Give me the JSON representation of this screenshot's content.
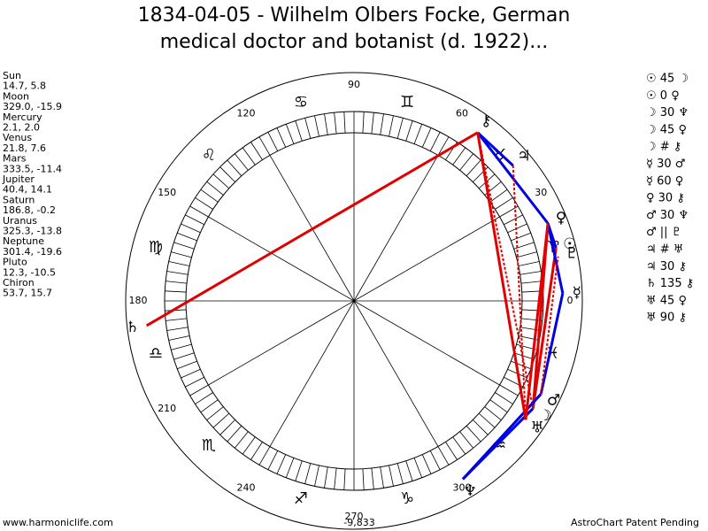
{
  "header": {
    "title_lines": [
      "1834-04-05 - Wilhelm Olbers Focke, German",
      "medical doctor and botanist (d. 1922)..."
    ]
  },
  "planets": [
    {
      "name": "Sun",
      "position": "14.7, 5.8",
      "glyph": "☉"
    },
    {
      "name": "Moon",
      "position": "329.0, -15.9",
      "glyph": "☽"
    },
    {
      "name": "Mercury",
      "position": "2.1, 2.0",
      "glyph": "☿"
    },
    {
      "name": "Venus",
      "position": "21.8, 7.6",
      "glyph": "♀"
    },
    {
      "name": "Mars",
      "position": "333.5, -11.4",
      "glyph": "♂"
    },
    {
      "name": "Jupiter",
      "position": "40.4, 14.1",
      "glyph": "♃"
    },
    {
      "name": "Saturn",
      "position": "186.8, -0.2",
      "glyph": "♄"
    },
    {
      "name": "Uranus",
      "position": "325.3, -13.8",
      "glyph": "♅"
    },
    {
      "name": "Neptune",
      "position": "301.4, -19.6",
      "glyph": "♆"
    },
    {
      "name": "Pluto",
      "position": "12.3, -10.5",
      "glyph": "♇"
    },
    {
      "name": "Chiron",
      "position": "53.7, 15.7",
      "glyph": "⚷"
    }
  ],
  "aspects": [
    {
      "text": "☉ 45 ☽",
      "color": "#e00000"
    },
    {
      "text": "☉ 0 ♀",
      "color": "#0000e0"
    },
    {
      "text": "☽ 30 ♆",
      "color": "#0000e0"
    },
    {
      "text": "☽ 45 ♀",
      "color": "#e00000"
    },
    {
      "text": "☽ # ⚷",
      "color": "#e00000",
      "dashed": true
    },
    {
      "text": "☿ 30 ♂",
      "color": "#0000e0"
    },
    {
      "text": "☿ 60 ♀",
      "color": "#0000e0"
    },
    {
      "text": "♀ 30 ⚷",
      "color": "#0000e0"
    },
    {
      "text": "♂ 30 ♆",
      "color": "#0000e0"
    },
    {
      "text": "♂ || ♇",
      "color": "#e00000",
      "dashed": true
    },
    {
      "text": "♃ # ♅",
      "color": "#e00000",
      "dashed": true
    },
    {
      "text": "♃ 30 ⚷",
      "color": "#0000e0"
    },
    {
      "text": "♄ 135 ⚷",
      "color": "#e00000"
    },
    {
      "text": "♅ 45 ♀",
      "color": "#e00000"
    },
    {
      "text": "♅ 90 ⚷",
      "color": "#e00000"
    }
  ],
  "signs": [
    "♈",
    "♉",
    "♊",
    "♋",
    "♌",
    "♍",
    "♎",
    "♏",
    "♐",
    "♑",
    "♒",
    "♓"
  ],
  "degree_labels": [
    0,
    30,
    60,
    90,
    120,
    150,
    180,
    210,
    240,
    270,
    300
  ],
  "footer": {
    "left": "www.harmoniclife.com",
    "center": "-9,833",
    "right": "AstroChart Patent Pending"
  }
}
